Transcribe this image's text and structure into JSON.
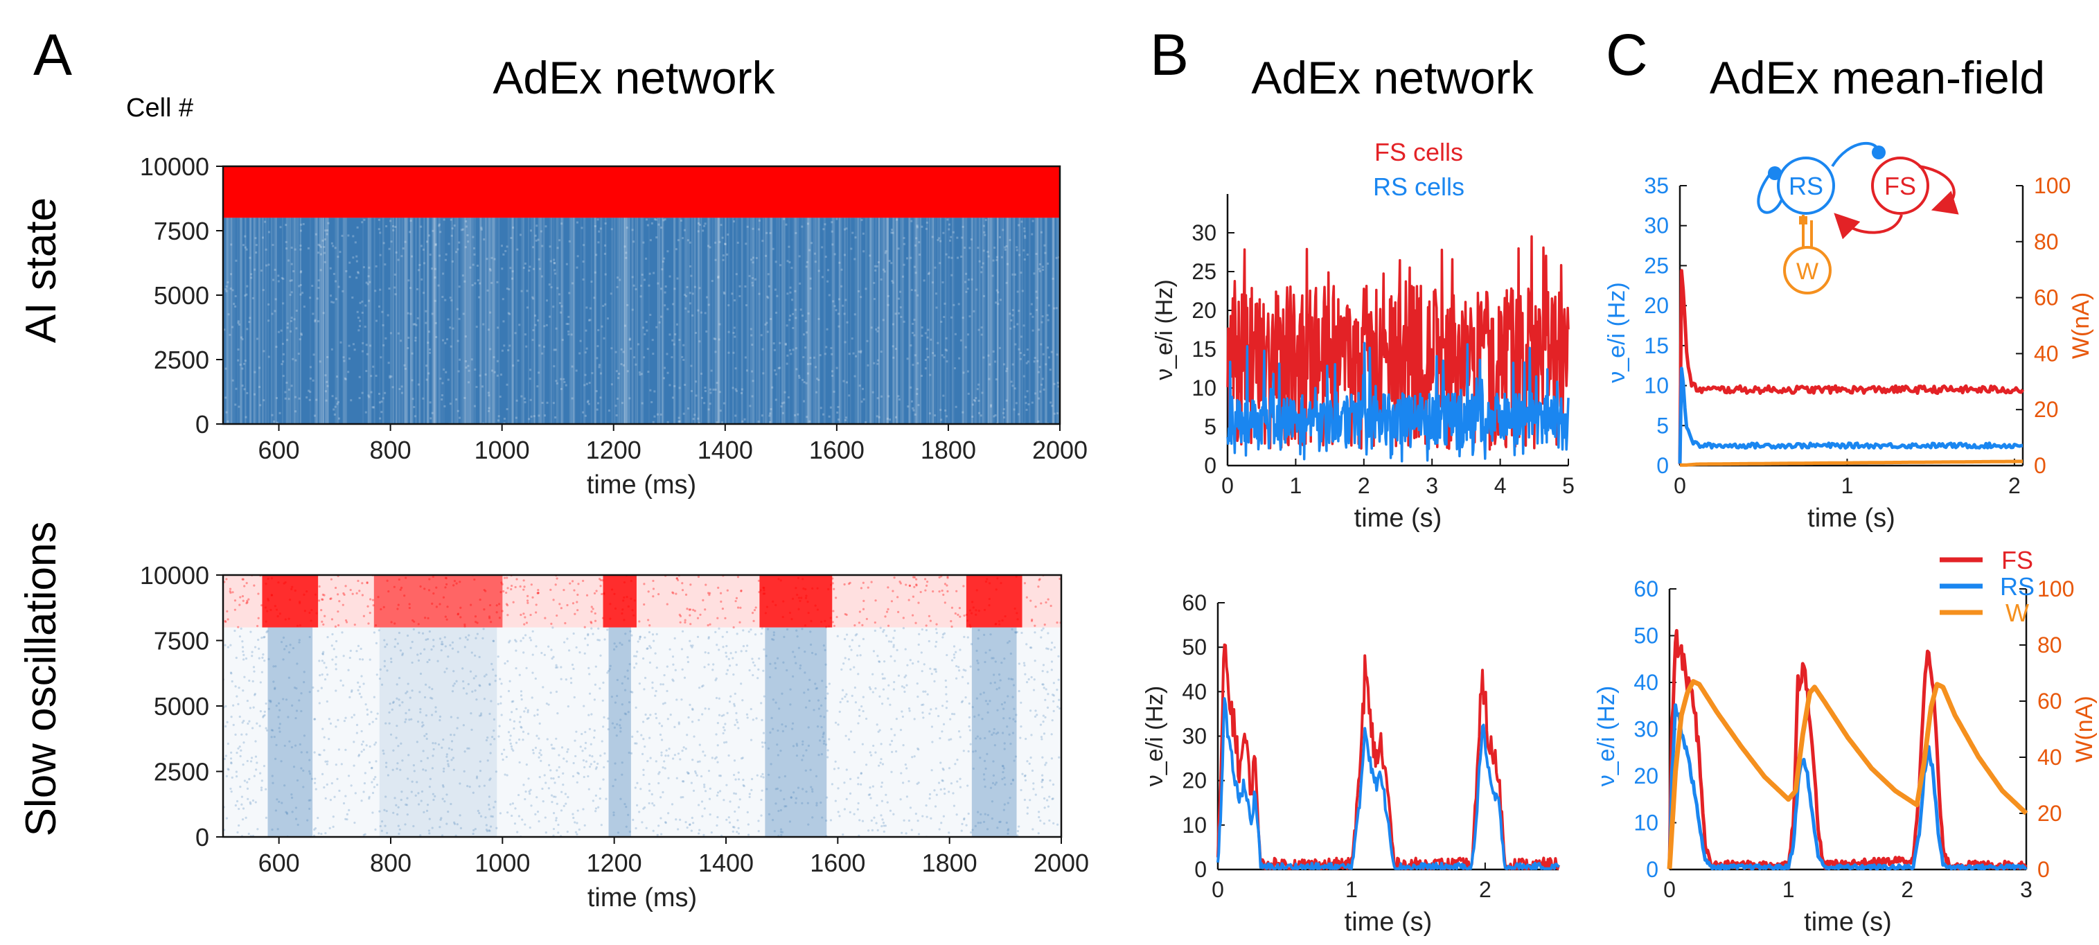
{
  "figure": {
    "panels": {
      "A": {
        "letter": "A",
        "title": "AdEx network",
        "cell_label": "Cell #",
        "row_labels": [
          "AI state",
          "Slow oscillations"
        ]
      },
      "B": {
        "letter": "B",
        "title": "AdEx network"
      },
      "C": {
        "letter": "C",
        "title": "AdEx mean-field"
      }
    },
    "inset": {
      "rs": "RS",
      "fs": "FS",
      "w": "W"
    }
  },
  "colors": {
    "fs": "#e32226",
    "rs": "#1a86f0",
    "w": "#f5901e",
    "raster_fs": "#ff0000",
    "raster_rs": "#3a79b4",
    "waxis": "#e8580c"
  },
  "chart_data": [
    {
      "id": "A_top",
      "type": "scatter",
      "title": "",
      "xlabel": "time (ms)",
      "ylabel": "Cell #",
      "xlim": [
        500,
        2000
      ],
      "ylim": [
        0,
        10000
      ],
      "xticks": [
        600,
        800,
        1000,
        1200,
        1400,
        1600,
        1800,
        2000
      ],
      "yticks": [
        0,
        2500,
        5000,
        7500,
        10000
      ],
      "series": [
        {
          "name": "",
          "color": "#ff0000",
          "cells": [
            8000,
            10000
          ],
          "density_profile": "uniform high"
        },
        {
          "name": "",
          "color": "#3a79b4",
          "cells": [
            0,
            8000
          ],
          "density_profile": "uniform high"
        }
      ]
    },
    {
      "id": "A_bottom",
      "type": "scatter",
      "title": "",
      "xlabel": "time (ms)",
      "ylabel": "",
      "xlim": [
        500,
        2000
      ],
      "ylim": [
        0,
        10000
      ],
      "xticks": [
        600,
        800,
        1000,
        1200,
        1400,
        1600,
        1800,
        2000
      ],
      "yticks": [
        0,
        2500,
        5000,
        7500,
        10000
      ],
      "up_states_ms": [
        [
          570,
          670
        ],
        [
          770,
          1000
        ],
        [
          1180,
          1240
        ],
        [
          1460,
          1590
        ],
        [
          1830,
          1930
        ]
      ],
      "series": [
        {
          "name": "",
          "color": "#ff0000",
          "cells": [
            8000,
            10000
          ]
        },
        {
          "name": "",
          "color": "#3a79b4",
          "cells": [
            0,
            8000
          ]
        }
      ]
    },
    {
      "id": "B_top",
      "type": "line",
      "xlabel": "time (s)",
      "ylabel": "ν_e/i (Hz)",
      "xlim": [
        0,
        5
      ],
      "ylim": [
        0,
        35
      ],
      "xticks": [
        0,
        1,
        2,
        3,
        4,
        5
      ],
      "yticks": [
        0,
        5,
        10,
        15,
        20,
        25,
        30
      ],
      "legend": [
        "FS cells",
        "RS cells"
      ],
      "series": [
        {
          "name": "FS cells",
          "color": "#e32226",
          "mean": 15,
          "range": [
            2,
            30
          ]
        },
        {
          "name": "RS cells",
          "color": "#1a86f0",
          "mean": 6,
          "range": [
            0.5,
            16
          ]
        }
      ]
    },
    {
      "id": "B_bottom",
      "type": "line",
      "xlabel": "time (s)",
      "ylabel": "ν_e/i (Hz)",
      "xlim": [
        0,
        2.55
      ],
      "ylim": [
        0,
        60
      ],
      "xticks": [
        0,
        1,
        2
      ],
      "yticks": [
        0,
        10,
        20,
        30,
        40,
        50,
        60
      ],
      "series": [
        {
          "name": "FS",
          "color": "#e32226",
          "x": [
            0,
            0.02,
            0.05,
            0.08,
            0.12,
            0.16,
            0.2,
            0.25,
            0.28,
            0.32,
            0.4,
            1.0,
            1.06,
            1.1,
            1.14,
            1.18,
            1.22,
            1.27,
            1.32,
            1.9,
            1.94,
            1.98,
            2.02,
            2.06,
            2.1,
            2.15,
            2.55
          ],
          "y": [
            2,
            20,
            50,
            40,
            33,
            22,
            30,
            18,
            25,
            1,
            1,
            1,
            20,
            45,
            33,
            25,
            28,
            18,
            1,
            1,
            20,
            45,
            30,
            25,
            22,
            1,
            1
          ]
        },
        {
          "name": "RS",
          "color": "#1a86f0",
          "x": [
            0,
            0.02,
            0.05,
            0.08,
            0.12,
            0.16,
            0.2,
            0.25,
            0.28,
            0.32,
            0.4,
            1.0,
            1.06,
            1.1,
            1.14,
            1.18,
            1.22,
            1.27,
            1.32,
            1.9,
            1.94,
            1.98,
            2.02,
            2.06,
            2.1,
            2.15,
            2.55
          ],
          "y": [
            1,
            12,
            38,
            28,
            22,
            15,
            20,
            10,
            18,
            0.5,
            0.5,
            0.5,
            14,
            32,
            25,
            19,
            21,
            12,
            0.5,
            0.5,
            13,
            34,
            22,
            17,
            15,
            0.5,
            0.5
          ]
        }
      ]
    },
    {
      "id": "C_top",
      "type": "line",
      "xlabel": "time (s)",
      "ylabel": "ν_e/i (Hz)",
      "y2label": "W(nA)",
      "xlim": [
        0,
        2.05
      ],
      "ylim": [
        0,
        35
      ],
      "y2lim": [
        0,
        100
      ],
      "xticks": [
        0,
        1,
        2
      ],
      "yticks": [
        0,
        5,
        10,
        15,
        20,
        25,
        30,
        35
      ],
      "y2ticks": [
        0,
        20,
        40,
        60,
        80,
        100
      ],
      "series": [
        {
          "name": "FS",
          "color": "#e32226",
          "x": [
            0,
            0.01,
            0.02,
            0.04,
            0.07,
            0.12,
            2.05
          ],
          "y": [
            0,
            25,
            22,
            14,
            10,
            9.5,
            9.5
          ]
        },
        {
          "name": "RS",
          "color": "#1a86f0",
          "x": [
            0,
            0.01,
            0.02,
            0.04,
            0.07,
            0.12,
            2.05
          ],
          "y": [
            0,
            12,
            10,
            5,
            3,
            2.5,
            2.5
          ]
        },
        {
          "name": "W",
          "color": "#f5901e",
          "axis": "right",
          "x": [
            0,
            0.1,
            2.05
          ],
          "y": [
            0,
            0.5,
            1.5
          ]
        }
      ]
    },
    {
      "id": "C_bottom",
      "type": "line",
      "xlabel": "time (s)",
      "ylabel": "ν_e/i (Hz)",
      "y2label": "W(nA)",
      "xlim": [
        0,
        3
      ],
      "ylim": [
        0,
        60
      ],
      "y2lim": [
        0,
        100
      ],
      "xticks": [
        0,
        1,
        2,
        3
      ],
      "yticks": [
        0,
        10,
        20,
        30,
        40,
        50,
        60
      ],
      "y2ticks": [
        0,
        20,
        40,
        60,
        80,
        100
      ],
      "legend": [
        "FS",
        "RS",
        "W"
      ],
      "series": [
        {
          "name": "FS",
          "color": "#e32226",
          "x": [
            0,
            0.02,
            0.05,
            0.1,
            0.15,
            0.2,
            0.25,
            0.3,
            0.35,
            1.0,
            1.04,
            1.08,
            1.12,
            1.16,
            1.2,
            1.25,
            1.3,
            2.05,
            2.1,
            2.14,
            2.18,
            2.22,
            2.26,
            2.3,
            2.35,
            3.0
          ],
          "y": [
            1,
            30,
            49,
            46,
            40,
            36,
            25,
            5,
            1,
            1,
            10,
            40,
            43,
            38,
            28,
            8,
            1,
            2,
            18,
            40,
            46,
            38,
            20,
            4,
            1,
            1
          ]
        },
        {
          "name": "RS",
          "color": "#1a86f0",
          "x": [
            0,
            0.02,
            0.05,
            0.1,
            0.15,
            0.2,
            0.25,
            0.3,
            0.35,
            1.0,
            1.04,
            1.08,
            1.12,
            1.16,
            1.2,
            1.25,
            1.3,
            2.05,
            2.1,
            2.14,
            2.18,
            2.22,
            2.26,
            2.3,
            2.35,
            3.0
          ],
          "y": [
            0.5,
            20,
            35,
            30,
            25,
            18,
            10,
            2,
            0.5,
            0.5,
            5,
            18,
            24,
            20,
            12,
            3,
            0.5,
            0.5,
            8,
            20,
            26,
            20,
            8,
            1,
            0.5,
            0.5
          ]
        },
        {
          "name": "W",
          "color": "#f5901e",
          "axis": "right",
          "x": [
            0,
            0.05,
            0.1,
            0.15,
            0.2,
            0.25,
            0.4,
            0.6,
            0.8,
            1.0,
            1.06,
            1.12,
            1.18,
            1.22,
            1.3,
            1.5,
            1.7,
            1.9,
            2.08,
            2.14,
            2.2,
            2.25,
            2.3,
            2.4,
            2.6,
            2.8,
            3.0
          ],
          "y": [
            0,
            35,
            55,
            63,
            67,
            66,
            56,
            44,
            33,
            25,
            28,
            48,
            63,
            65,
            60,
            47,
            36,
            28,
            23,
            38,
            58,
            66,
            65,
            55,
            40,
            28,
            20
          ]
        }
      ]
    }
  ]
}
